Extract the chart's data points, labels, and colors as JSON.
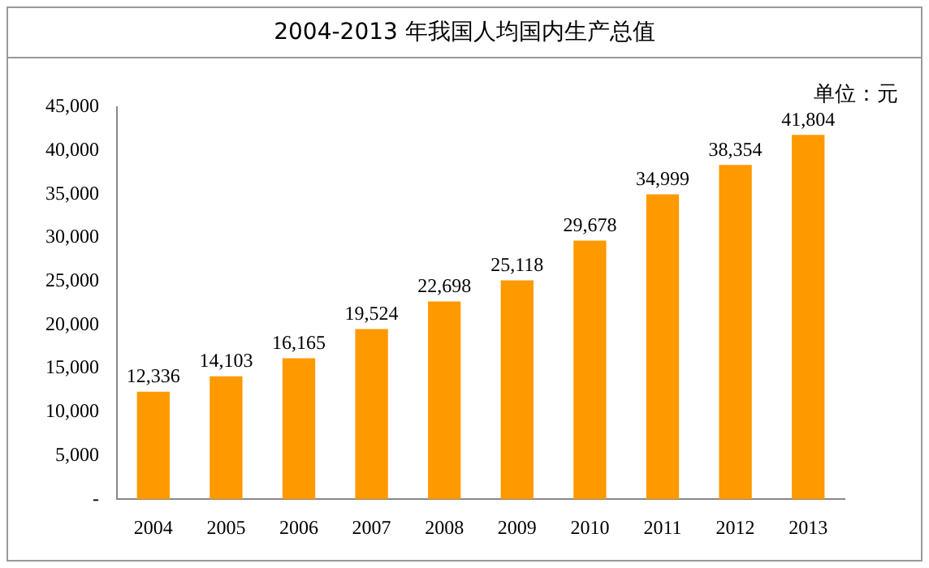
{
  "chart_data": {
    "type": "bar",
    "title": "2004-2013 年我国人均国内生产总值",
    "annotations": [
      "单位：元"
    ],
    "categories": [
      "2004",
      "2005",
      "2006",
      "2007",
      "2008",
      "2009",
      "2010",
      "2011",
      "2012",
      "2013"
    ],
    "values": [
      12336,
      14103,
      16165,
      19524,
      22698,
      25118,
      29678,
      34999,
      38354,
      41804
    ],
    "value_labels": [
      "12,336",
      "14,103",
      "16,165",
      "19,524",
      "22,698",
      "25,118",
      "29,678",
      "34,999",
      "38,354",
      "41,804"
    ],
    "color": "#ff9900",
    "ylim": [
      0,
      45000
    ],
    "yticks": [
      {
        "value": 0,
        "label": "-"
      },
      {
        "value": 5000,
        "label": "5,000"
      },
      {
        "value": 10000,
        "label": "10,000"
      },
      {
        "value": 15000,
        "label": "15,000"
      },
      {
        "value": 20000,
        "label": "20,000"
      },
      {
        "value": 25000,
        "label": "25,000"
      },
      {
        "value": 30000,
        "label": "30,000"
      },
      {
        "value": 35000,
        "label": "35,000"
      },
      {
        "value": 40000,
        "label": "40,000"
      },
      {
        "value": 45000,
        "label": "45,000"
      }
    ],
    "grid": false,
    "legend": false
  }
}
